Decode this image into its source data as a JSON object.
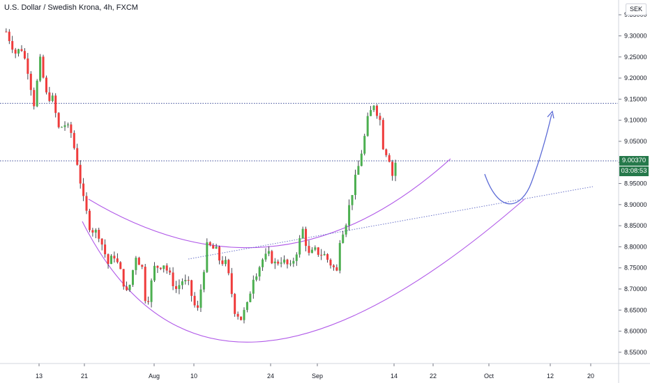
{
  "header": {
    "title": "U.S. Dollar / Swedish Krona, 4h, FXCM",
    "currency": "SEK"
  },
  "price_tags": {
    "last_price": "9.00370",
    "countdown": "03:08:53",
    "color": "#26794b"
  },
  "colors": {
    "up": "#4caf50",
    "down": "#ef3b3b",
    "wick": "#131722",
    "drawing": "#b058e8",
    "arrow": "#5b6ad6",
    "hline": "#3e4d99",
    "trendline": "#6a73c9"
  },
  "chart_data": {
    "type": "candlestick",
    "title": "U.S. Dollar / Swedish Krona, 4h, FXCM",
    "ylabel": "SEK",
    "ylim": [
      8.525,
      9.385
    ],
    "y_ticks": [
      "9.35000",
      "9.30000",
      "9.25000",
      "9.20000",
      "9.15000",
      "9.10000",
      "9.05000",
      "9.00000",
      "8.95000",
      "8.90000",
      "8.85000",
      "8.80000",
      "8.75000",
      "8.70000",
      "8.65000",
      "8.60000",
      "8.55000"
    ],
    "x_ticks": [
      "13",
      "21",
      "Aug",
      "10",
      "24",
      "Sep",
      "14",
      "22",
      "Oct",
      "12",
      "20"
    ],
    "grid": false,
    "horizontal_lines": [
      9.14,
      9.0037
    ],
    "close_path": [
      [
        0,
        9.31
      ],
      [
        3,
        9.26
      ],
      [
        5,
        9.27
      ],
      [
        7,
        9.22
      ],
      [
        9,
        9.14
      ],
      [
        11,
        9.24
      ],
      [
        13,
        9.16
      ],
      [
        15,
        9.15
      ],
      [
        17,
        9.08
      ],
      [
        19,
        9.09
      ],
      [
        21,
        9.07
      ],
      [
        23,
        9.0
      ],
      [
        25,
        8.91
      ],
      [
        27,
        8.85
      ],
      [
        28,
        8.84
      ],
      [
        30,
        8.83
      ],
      [
        33,
        8.76
      ],
      [
        35,
        8.78
      ],
      [
        37,
        8.74
      ],
      [
        39,
        8.69
      ],
      [
        40,
        8.71
      ],
      [
        42,
        8.78
      ],
      [
        44,
        8.75
      ],
      [
        45,
        8.68
      ],
      [
        46,
        8.68
      ],
      [
        48,
        8.75
      ],
      [
        51,
        8.76
      ],
      [
        53,
        8.73
      ],
      [
        55,
        8.7
      ],
      [
        57,
        8.72
      ],
      [
        59,
        8.71
      ],
      [
        61,
        8.66
      ],
      [
        62,
        8.65
      ],
      [
        63,
        8.7
      ],
      [
        65,
        8.8
      ],
      [
        66,
        8.8
      ],
      [
        68,
        8.79
      ],
      [
        69,
        8.77
      ],
      [
        71,
        8.76
      ],
      [
        72,
        8.73
      ],
      [
        74,
        8.65
      ],
      [
        76,
        8.63
      ],
      [
        78,
        8.66
      ],
      [
        80,
        8.73
      ],
      [
        81,
        8.74
      ],
      [
        83,
        8.77
      ],
      [
        85,
        8.78
      ],
      [
        87,
        8.76
      ],
      [
        89,
        8.77
      ],
      [
        92,
        8.75
      ],
      [
        94,
        8.79
      ],
      [
        96,
        8.84
      ],
      [
        98,
        8.78
      ],
      [
        100,
        8.79
      ],
      [
        103,
        8.78
      ],
      [
        105,
        8.76
      ],
      [
        107,
        8.74
      ],
      [
        108,
        8.82
      ],
      [
        110,
        8.86
      ],
      [
        112,
        8.93
      ],
      [
        114,
        8.99
      ],
      [
        116,
        9.06
      ],
      [
        117,
        9.1
      ],
      [
        118,
        9.12
      ],
      [
        119,
        9.14
      ],
      [
        121,
        9.1
      ],
      [
        122,
        9.04
      ],
      [
        124,
        9.01
      ],
      [
        125,
        8.97
      ],
      [
        126,
        9.0
      ]
    ],
    "candle_count": 127,
    "x_min": -2,
    "x_max": 198
  }
}
